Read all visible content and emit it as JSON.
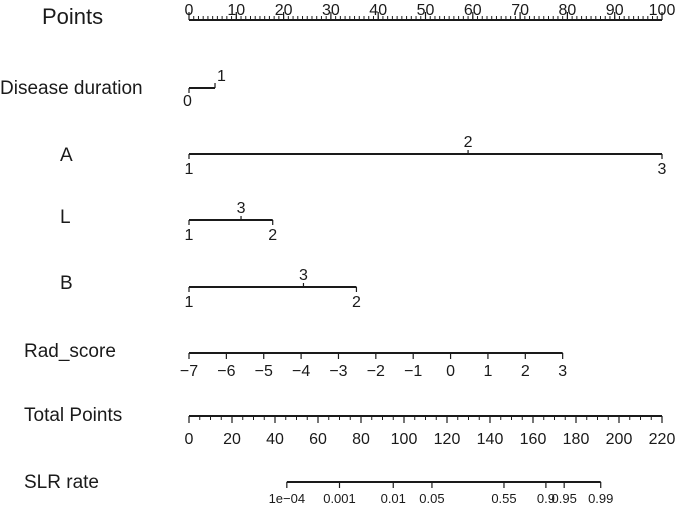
{
  "chart_data": {
    "type": "nomogram",
    "rows": [
      {
        "id": "points",
        "label": "Points",
        "kind": "scale",
        "min": 0,
        "max": 100,
        "major_ticks": [
          0,
          10,
          20,
          30,
          40,
          50,
          60,
          70,
          80,
          90,
          100
        ],
        "minor_step": 1
      },
      {
        "id": "disease-duration",
        "label": "Disease duration",
        "kind": "categorical",
        "levels": [
          {
            "label": "0",
            "points": 0
          },
          {
            "label": "1",
            "points": 5.5
          }
        ]
      },
      {
        "id": "a",
        "label": "A",
        "kind": "categorical",
        "levels": [
          {
            "label": "1",
            "points": 0
          },
          {
            "label": "2",
            "points": 59
          },
          {
            "label": "3",
            "points": 100
          }
        ]
      },
      {
        "id": "l",
        "label": "L",
        "kind": "categorical",
        "levels": [
          {
            "label": "1",
            "points": 0
          },
          {
            "label": "3",
            "points": 11
          },
          {
            "label": "2",
            "points": 17.7
          }
        ]
      },
      {
        "id": "b",
        "label": "B",
        "kind": "categorical",
        "levels": [
          {
            "label": "1",
            "points": 0
          },
          {
            "label": "3",
            "points": 24.2
          },
          {
            "label": "2",
            "points": 35.4
          }
        ]
      },
      {
        "id": "rad-score",
        "label": "Rad_score",
        "kind": "scale",
        "min": -7,
        "max": 3,
        "points_at_min": 0,
        "points_at_max": 79,
        "ticks": [
          -7,
          -6,
          -5,
          -4,
          -3,
          -2,
          -1,
          0,
          1,
          2,
          3
        ],
        "tick_labels": [
          "−7",
          "−6",
          "−5",
          "−4",
          "−3",
          "−2",
          "−1",
          "0",
          "1",
          "2",
          "3"
        ]
      },
      {
        "id": "total-points",
        "label": "Total Points",
        "kind": "scale",
        "min": 0,
        "max": 220,
        "major_ticks": [
          0,
          20,
          40,
          60,
          80,
          100,
          120,
          140,
          160,
          180,
          200,
          220
        ],
        "minor_step": 5
      },
      {
        "id": "slr-rate",
        "label": "SLR rate",
        "kind": "probability",
        "ticks": [
          {
            "label": "1e−04",
            "total_points": 45.5
          },
          {
            "label": "0.001",
            "total_points": 70
          },
          {
            "label": "0.01",
            "total_points": 95
          },
          {
            "label": "0.05",
            "total_points": 113
          },
          {
            "label": "0.55",
            "total_points": 146.5
          },
          {
            "label": "0.9",
            "total_points": 166
          },
          {
            "label": "0.95",
            "total_points": 174.5
          },
          {
            "label": "0.99",
            "total_points": 191.5
          }
        ]
      }
    ]
  }
}
